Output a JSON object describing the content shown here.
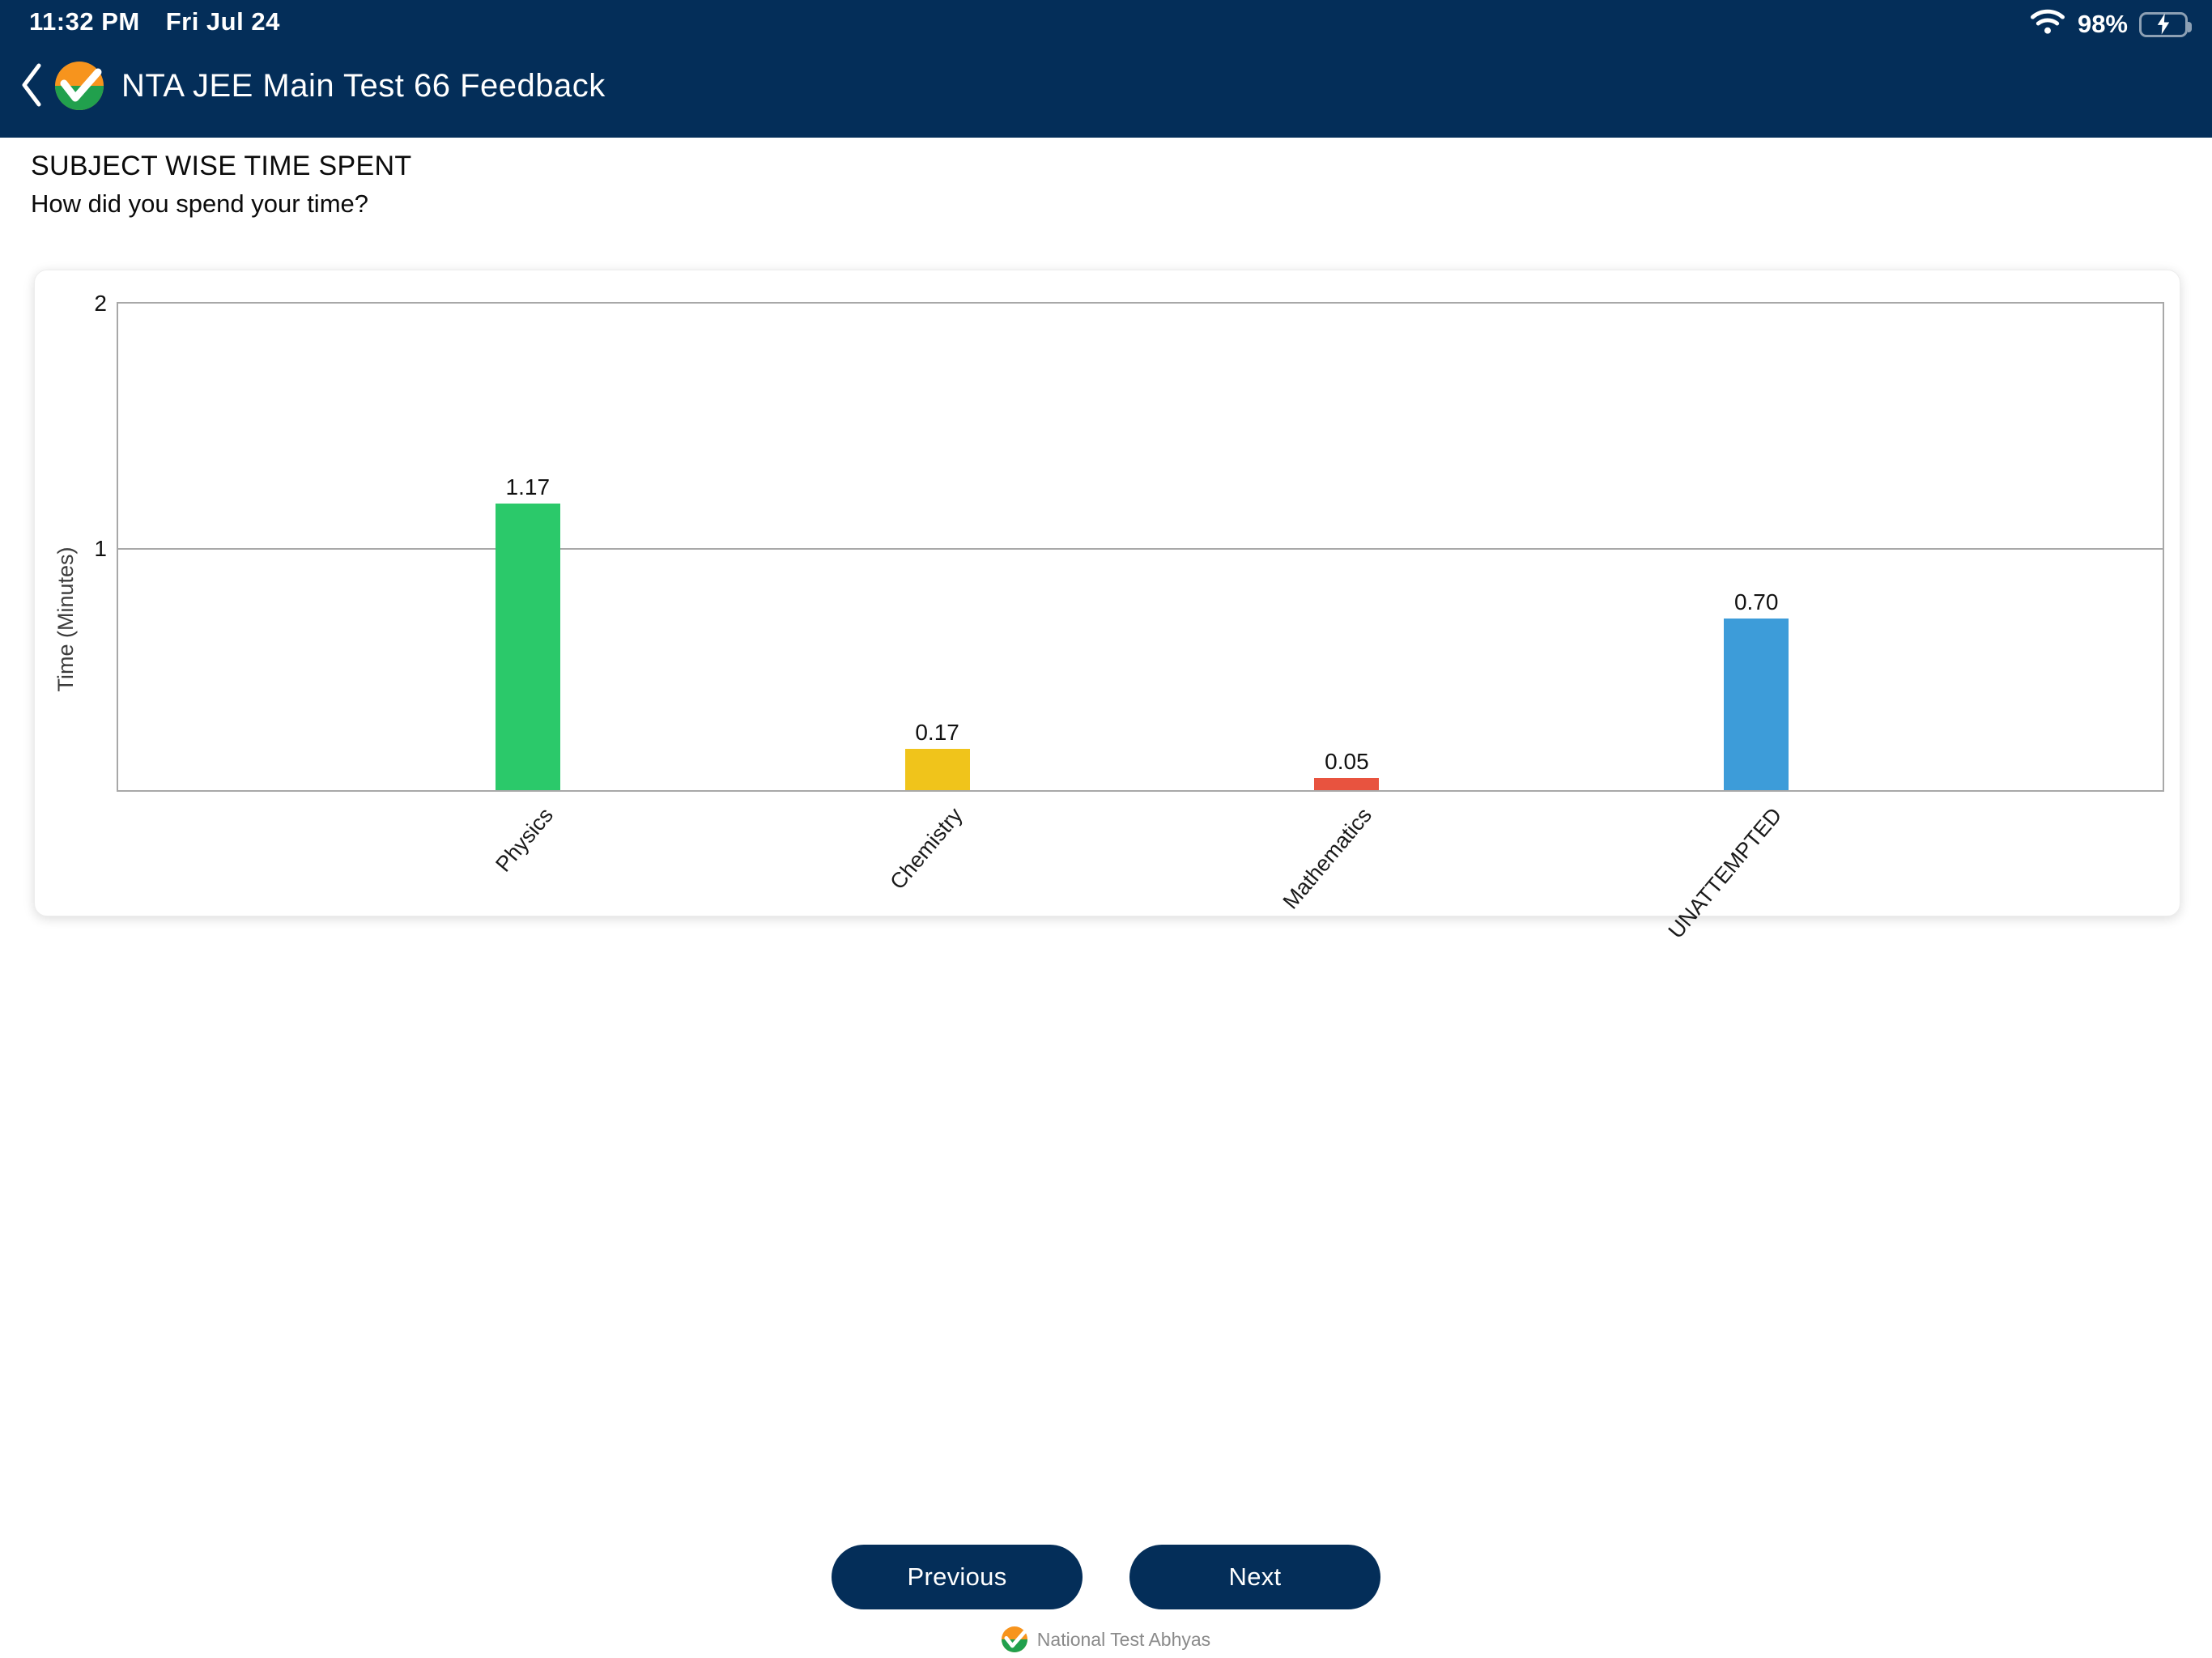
{
  "status_bar": {
    "time": "11:32 PM",
    "date": "Fri Jul 24",
    "battery_percent": "98%",
    "icons": [
      "wifi-icon",
      "battery-charging-icon"
    ]
  },
  "header": {
    "title": "NTA JEE Main Test 66 Feedback",
    "back_icon": "chevron-left-icon",
    "logo_icon": "nta-logo-icon"
  },
  "section": {
    "title": "SUBJECT WISE TIME SPENT",
    "subtitle": "How did you spend your time?"
  },
  "chart_data": {
    "type": "bar",
    "categories": [
      "Physics",
      "Chemistry",
      "Mathematics",
      "UNATTEMPTED"
    ],
    "values": [
      1.17,
      0.17,
      0.05,
      0.7
    ],
    "value_labels": [
      "1.17",
      "0.17",
      "0.05",
      "0.70"
    ],
    "bar_colors": [
      "#2bc96a",
      "#f0c41b",
      "#e8533f",
      "#3d9cd9"
    ],
    "title": "",
    "xlabel": "",
    "ylabel": "Time (Minutes)",
    "ylim": [
      0,
      2
    ],
    "yticks": [
      1,
      2
    ],
    "grid": true,
    "legend": "none",
    "bar_value_labels_shown": true,
    "x_label_rotation_deg": -50
  },
  "buttons": {
    "previous": "Previous",
    "next": "Next"
  },
  "footer": {
    "brand": "National Test Abhyas",
    "logo_icon": "nta-logo-icon"
  },
  "colors": {
    "header_bg": "#042e59",
    "button_bg": "#042e59",
    "battery_green": "#35c759",
    "logo_orange": "#f7941d",
    "logo_green": "#21a04d",
    "grid_gray": "#a8a8a8"
  }
}
